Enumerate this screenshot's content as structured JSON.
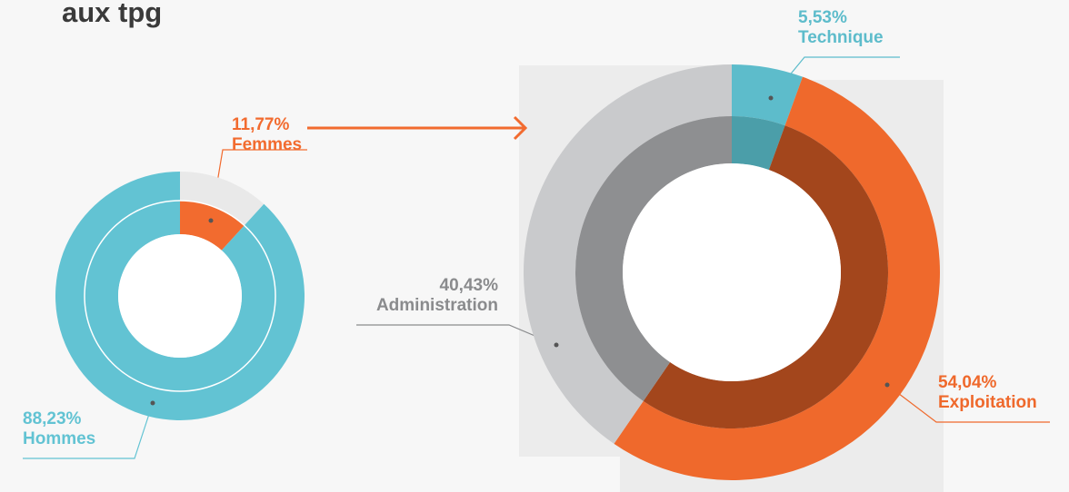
{
  "chart_data": [
    {
      "type": "pie",
      "title": "aux tpg",
      "categories": [
        "Femmes",
        "Hommes"
      ],
      "values": [
        11.77,
        88.23
      ],
      "value_labels": [
        "11,77%",
        "88,23%"
      ],
      "colors": [
        "#e9e9e9",
        "#62c3d3"
      ],
      "inner_colors": [
        "#f26b2f",
        "#62c3d3"
      ],
      "label_colors": [
        "#f26b2f",
        "#62c3d3"
      ]
    },
    {
      "type": "pie",
      "categories": [
        "Technique",
        "Exploitation",
        "Administration"
      ],
      "values": [
        5.53,
        54.04,
        40.43
      ],
      "value_labels": [
        "5,53%",
        "54,04%",
        "40,43%"
      ],
      "colors": [
        "#5dbccb",
        "#ef692c",
        "#c9cacc"
      ],
      "inner_colors": [
        "#4b9ea9",
        "#a3461c",
        "#8e8f91"
      ],
      "label_colors": [
        "#5dbccb",
        "#ef692c",
        "#8a8b8d"
      ]
    }
  ]
}
